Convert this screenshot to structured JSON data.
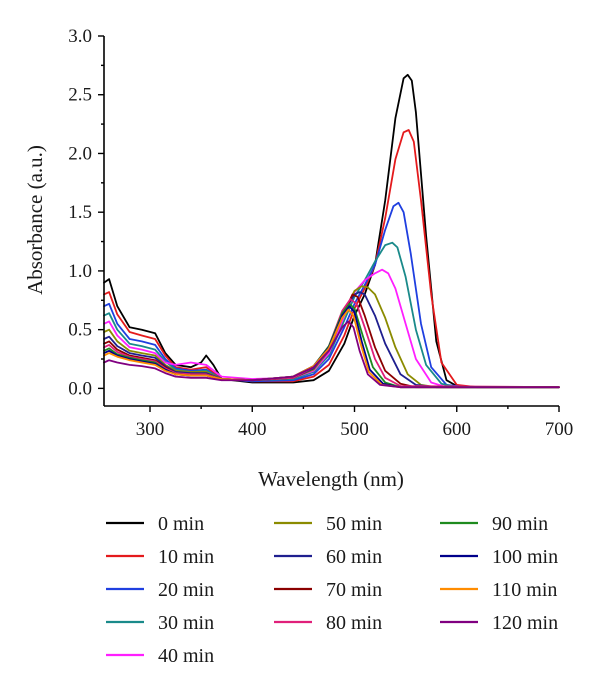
{
  "chart_data": {
    "type": "line",
    "xlabel": "Wavelength (nm)",
    "ylabel": "Absorbance (a.u.)",
    "xlim": [
      255,
      700
    ],
    "ylim": [
      -0.15,
      3.0
    ],
    "xticks": [
      300,
      400,
      500,
      600,
      700
    ],
    "xtick_labels": [
      "300",
      "400",
      "500",
      "600",
      "700"
    ],
    "yticks": [
      0.0,
      0.5,
      1.0,
      1.5,
      2.0,
      2.5,
      3.0
    ],
    "ytick_labels": [
      "0.0",
      "0.5",
      "1.0",
      "1.5",
      "2.0",
      "2.5",
      "3.0"
    ],
    "legend_position": "bottom",
    "series": [
      {
        "name": "0 min",
        "color": "#000000",
        "x": [
          255,
          260,
          268,
          280,
          292,
          305,
          315,
          325,
          340,
          350,
          355,
          362,
          370,
          400,
          440,
          460,
          475,
          490,
          500,
          510,
          520,
          530,
          540,
          548,
          552,
          556,
          560,
          570,
          580,
          590,
          600,
          620,
          700
        ],
        "y": [
          0.9,
          0.93,
          0.7,
          0.52,
          0.5,
          0.47,
          0.3,
          0.2,
          0.18,
          0.22,
          0.28,
          0.2,
          0.08,
          0.05,
          0.05,
          0.07,
          0.15,
          0.38,
          0.62,
          0.8,
          1.05,
          1.6,
          2.3,
          2.64,
          2.67,
          2.62,
          2.35,
          1.3,
          0.4,
          0.07,
          0.02,
          0.01,
          0.01
        ]
      },
      {
        "name": "10 min",
        "color": "#e41a1c",
        "x": [
          255,
          260,
          268,
          280,
          292,
          305,
          315,
          325,
          340,
          355,
          370,
          400,
          440,
          460,
          475,
          490,
          500,
          510,
          520,
          530,
          540,
          548,
          553,
          558,
          565,
          575,
          585,
          600,
          620,
          700
        ],
        "y": [
          0.8,
          0.82,
          0.63,
          0.48,
          0.45,
          0.42,
          0.28,
          0.18,
          0.16,
          0.18,
          0.08,
          0.06,
          0.06,
          0.1,
          0.2,
          0.45,
          0.68,
          0.85,
          1.05,
          1.45,
          1.95,
          2.18,
          2.2,
          2.1,
          1.6,
          0.8,
          0.22,
          0.03,
          0.01,
          0.01
        ]
      },
      {
        "name": "20 min",
        "color": "#1f3fe0",
        "x": [
          255,
          260,
          268,
          280,
          292,
          305,
          315,
          325,
          340,
          355,
          370,
          400,
          440,
          460,
          475,
          490,
          500,
          510,
          520,
          530,
          538,
          543,
          548,
          555,
          565,
          575,
          590,
          610,
          700
        ],
        "y": [
          0.7,
          0.72,
          0.55,
          0.42,
          0.4,
          0.37,
          0.25,
          0.17,
          0.15,
          0.16,
          0.08,
          0.06,
          0.07,
          0.12,
          0.25,
          0.52,
          0.72,
          0.88,
          1.05,
          1.35,
          1.55,
          1.58,
          1.5,
          1.15,
          0.55,
          0.18,
          0.03,
          0.01,
          0.01
        ]
      },
      {
        "name": "30 min",
        "color": "#1a8a8a",
        "x": [
          255,
          260,
          268,
          280,
          292,
          305,
          315,
          325,
          340,
          355,
          370,
          400,
          440,
          460,
          475,
          490,
          500,
          510,
          520,
          530,
          537,
          542,
          550,
          560,
          570,
          585,
          600,
          700
        ],
        "y": [
          0.62,
          0.64,
          0.5,
          0.38,
          0.36,
          0.33,
          0.23,
          0.16,
          0.14,
          0.15,
          0.08,
          0.07,
          0.08,
          0.14,
          0.28,
          0.58,
          0.78,
          0.92,
          1.08,
          1.22,
          1.24,
          1.2,
          0.95,
          0.5,
          0.2,
          0.04,
          0.01,
          0.01
        ]
      },
      {
        "name": "40 min",
        "color": "#ff1fff",
        "x": [
          255,
          260,
          268,
          280,
          292,
          305,
          315,
          325,
          340,
          355,
          370,
          400,
          440,
          460,
          475,
          490,
          500,
          510,
          520,
          527,
          533,
          540,
          550,
          560,
          575,
          590,
          700
        ],
        "y": [
          0.55,
          0.57,
          0.45,
          0.35,
          0.33,
          0.3,
          0.22,
          0.2,
          0.22,
          0.2,
          0.1,
          0.08,
          0.09,
          0.15,
          0.3,
          0.62,
          0.82,
          0.92,
          0.98,
          1.01,
          0.98,
          0.85,
          0.55,
          0.25,
          0.05,
          0.01,
          0.01
        ]
      },
      {
        "name": "50 min",
        "color": "#8b8b00",
        "x": [
          255,
          260,
          268,
          280,
          292,
          305,
          315,
          325,
          340,
          355,
          370,
          400,
          440,
          460,
          475,
          490,
          500,
          507,
          513,
          520,
          530,
          540,
          552,
          565,
          580,
          700
        ],
        "y": [
          0.48,
          0.5,
          0.4,
          0.32,
          0.3,
          0.28,
          0.2,
          0.15,
          0.14,
          0.14,
          0.08,
          0.07,
          0.09,
          0.16,
          0.32,
          0.65,
          0.83,
          0.87,
          0.86,
          0.8,
          0.6,
          0.35,
          0.12,
          0.03,
          0.01,
          0.01
        ]
      },
      {
        "name": "60 min",
        "color": "#1f1f8f",
        "x": [
          255,
          260,
          268,
          280,
          292,
          305,
          315,
          325,
          340,
          355,
          370,
          400,
          440,
          460,
          475,
          490,
          500,
          505,
          510,
          520,
          530,
          545,
          560,
          580,
          700
        ],
        "y": [
          0.42,
          0.44,
          0.36,
          0.3,
          0.28,
          0.26,
          0.19,
          0.14,
          0.13,
          0.13,
          0.08,
          0.07,
          0.09,
          0.17,
          0.34,
          0.66,
          0.8,
          0.82,
          0.8,
          0.62,
          0.38,
          0.12,
          0.03,
          0.01,
          0.01
        ]
      },
      {
        "name": "70 min",
        "color": "#8b0000",
        "x": [
          255,
          260,
          268,
          280,
          292,
          305,
          315,
          325,
          340,
          355,
          370,
          400,
          440,
          460,
          475,
          490,
          498,
          503,
          510,
          520,
          530,
          545,
          560,
          700
        ],
        "y": [
          0.38,
          0.4,
          0.33,
          0.28,
          0.26,
          0.24,
          0.18,
          0.13,
          0.12,
          0.12,
          0.08,
          0.07,
          0.09,
          0.18,
          0.35,
          0.65,
          0.8,
          0.78,
          0.62,
          0.35,
          0.15,
          0.04,
          0.01,
          0.01
        ]
      },
      {
        "name": "80 min",
        "color": "#e0207a",
        "x": [
          255,
          260,
          268,
          280,
          292,
          305,
          315,
          325,
          340,
          355,
          370,
          400,
          440,
          460,
          475,
          488,
          496,
          502,
          510,
          520,
          530,
          545,
          700
        ],
        "y": [
          0.35,
          0.37,
          0.31,
          0.27,
          0.25,
          0.23,
          0.17,
          0.13,
          0.12,
          0.12,
          0.08,
          0.07,
          0.09,
          0.18,
          0.36,
          0.66,
          0.76,
          0.72,
          0.52,
          0.25,
          0.09,
          0.02,
          0.01
        ]
      },
      {
        "name": "90 min",
        "color": "#1e8b1e",
        "x": [
          255,
          260,
          268,
          280,
          292,
          305,
          315,
          325,
          340,
          355,
          370,
          400,
          440,
          460,
          475,
          488,
          495,
          500,
          508,
          518,
          530,
          545,
          700
        ],
        "y": [
          0.32,
          0.34,
          0.29,
          0.26,
          0.24,
          0.22,
          0.16,
          0.12,
          0.11,
          0.11,
          0.08,
          0.07,
          0.1,
          0.19,
          0.36,
          0.64,
          0.72,
          0.68,
          0.45,
          0.18,
          0.05,
          0.01,
          0.01
        ]
      },
      {
        "name": "100 min",
        "color": "#00008b",
        "x": [
          255,
          260,
          268,
          280,
          292,
          305,
          315,
          325,
          340,
          355,
          370,
          400,
          440,
          460,
          475,
          488,
          495,
          500,
          507,
          515,
          528,
          545,
          700
        ],
        "y": [
          0.3,
          0.32,
          0.28,
          0.25,
          0.23,
          0.21,
          0.16,
          0.12,
          0.11,
          0.11,
          0.08,
          0.07,
          0.1,
          0.19,
          0.35,
          0.62,
          0.7,
          0.65,
          0.4,
          0.16,
          0.04,
          0.01,
          0.01
        ]
      },
      {
        "name": "110 min",
        "color": "#ff8c00",
        "x": [
          255,
          260,
          268,
          280,
          292,
          305,
          315,
          325,
          340,
          355,
          370,
          400,
          440,
          460,
          475,
          488,
          494,
          499,
          506,
          514,
          527,
          545,
          700
        ],
        "y": [
          0.28,
          0.3,
          0.27,
          0.24,
          0.22,
          0.2,
          0.15,
          0.12,
          0.11,
          0.11,
          0.08,
          0.07,
          0.1,
          0.19,
          0.34,
          0.6,
          0.67,
          0.62,
          0.38,
          0.14,
          0.03,
          0.01,
          0.01
        ]
      },
      {
        "name": "120 min",
        "color": "#800080",
        "x": [
          255,
          260,
          268,
          280,
          292,
          305,
          315,
          325,
          340,
          355,
          370,
          400,
          440,
          460,
          475,
          488,
          494,
          499,
          505,
          513,
          525,
          545,
          700
        ],
        "y": [
          0.22,
          0.24,
          0.22,
          0.2,
          0.19,
          0.17,
          0.13,
          0.1,
          0.09,
          0.09,
          0.07,
          0.07,
          0.1,
          0.18,
          0.32,
          0.52,
          0.57,
          0.52,
          0.32,
          0.12,
          0.03,
          0.01,
          0.01
        ]
      }
    ]
  }
}
